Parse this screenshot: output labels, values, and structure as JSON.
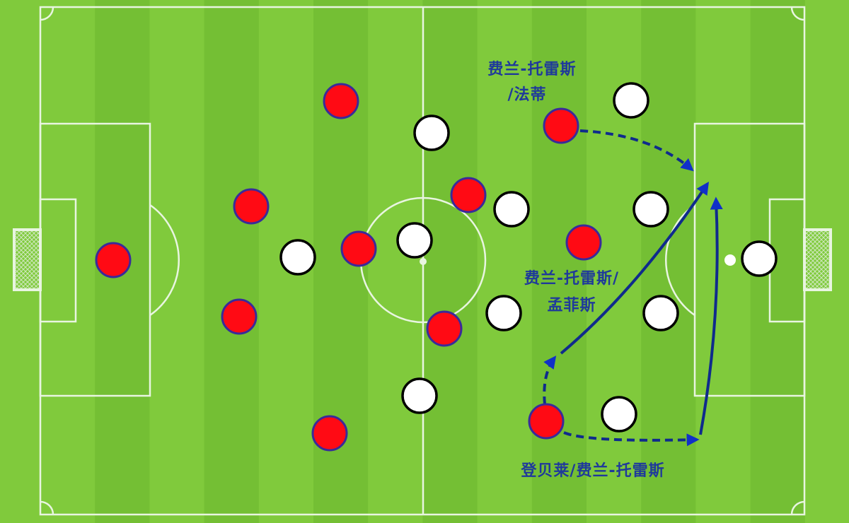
{
  "colors": {
    "grass_light": "#80ca3c",
    "grass_dark": "#74bf34",
    "lines": "#e8f5e0",
    "red_team_fill": "#ff0a14",
    "red_team_outline": "#3a2a9a",
    "white_team_fill": "#ffffff",
    "white_team_outline": "#000000",
    "arrows": "#0f2b8c",
    "labels": "#1f3a9a"
  },
  "labels": {
    "top_line1": "费兰-托雷斯",
    "top_line2": "/法蒂",
    "mid_line1": "费兰-托雷斯/",
    "mid_line2": "孟菲斯",
    "bottom": "登贝莱/费兰-托雷斯"
  },
  "icons": {
    "players": "circle",
    "ball": "circle",
    "goal_net": "net"
  }
}
